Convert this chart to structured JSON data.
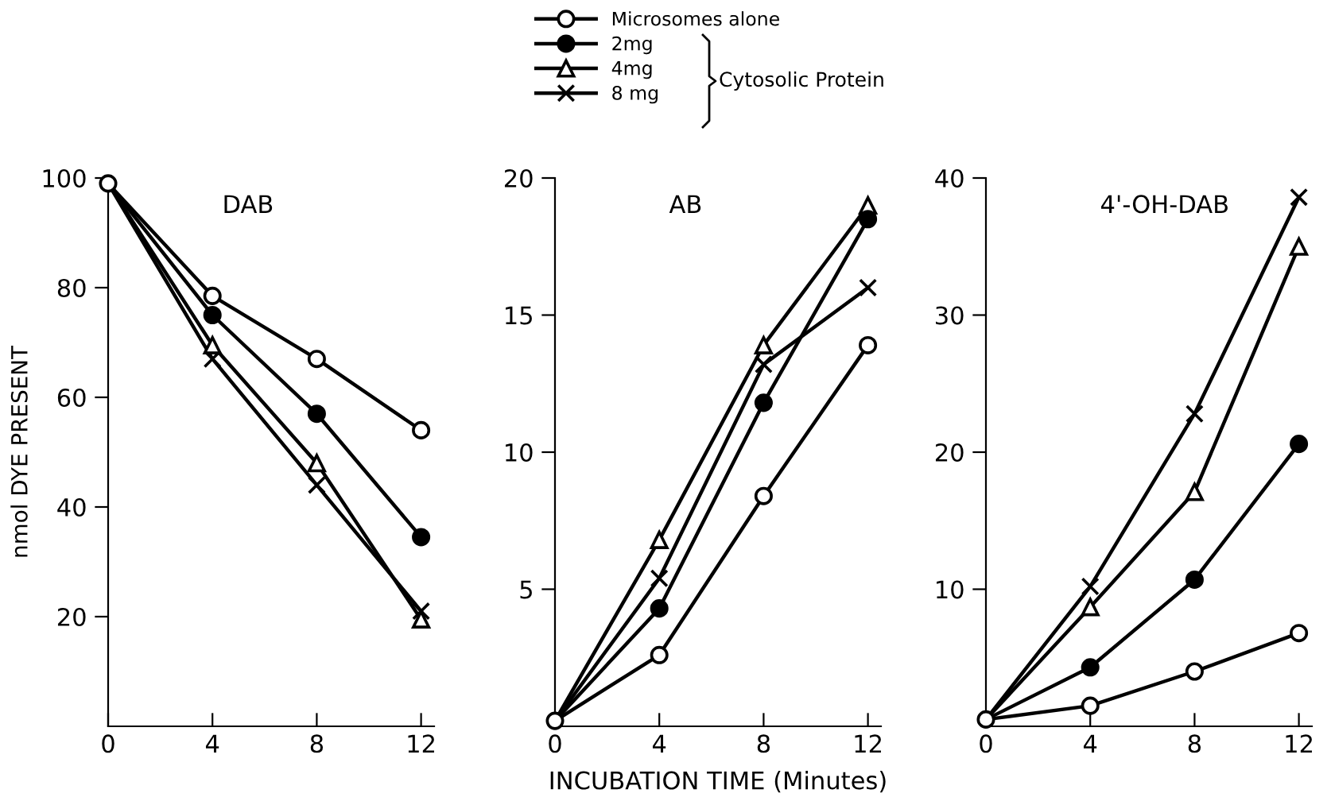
{
  "chart_data": [
    {
      "type": "line",
      "title": "DAB",
      "ylabel": "nmol DYE PRESENT",
      "x": [
        0,
        4,
        8,
        12
      ],
      "xlim": [
        0,
        12.5
      ],
      "xticks": [
        0,
        4,
        8,
        12
      ],
      "ylim": [
        0,
        100
      ],
      "yticks": [
        20,
        40,
        60,
        80,
        100
      ],
      "grid": false,
      "legend": false,
      "series": [
        {
          "color": "#000000",
          "marker": "circle",
          "values": [
            99,
            78.5,
            67,
            54
          ]
        },
        {
          "color": "#000000",
          "marker": "circle",
          "values": [
            99,
            75,
            57,
            34.5
          ]
        },
        {
          "color": "#000000",
          "marker": "triangle",
          "values": [
            99,
            69.5,
            48,
            19.5
          ]
        },
        {
          "color": "#000000",
          "marker": "cross",
          "values": [
            99,
            67,
            44,
            21
          ]
        }
      ]
    },
    {
      "type": "line",
      "title": "AB",
      "xlabel": "INCUBATION TIME (Minutes)",
      "x": [
        0,
        4,
        8,
        12
      ],
      "xlim": [
        0,
        12.5
      ],
      "xticks": [
        0,
        4,
        8,
        12
      ],
      "ylim": [
        0,
        20
      ],
      "yticks": [
        5,
        10,
        15,
        20
      ],
      "grid": false,
      "legend": "top",
      "annotations": [
        "Cytosolic Protein"
      ],
      "series": [
        {
          "name": "Microsomes alone",
          "color": "#000000",
          "marker": "circle",
          "values": [
            0.2,
            2.6,
            8.4,
            13.9
          ]
        },
        {
          "name": "2mg",
          "color": "#000000",
          "marker": "circle",
          "values": [
            0.2,
            4.3,
            11.8,
            18.5
          ]
        },
        {
          "name": "4mg",
          "color": "#000000",
          "marker": "triangle",
          "values": [
            0.2,
            6.8,
            13.9,
            19
          ]
        },
        {
          "name": "8 mg",
          "color": "#000000",
          "marker": "cross",
          "values": [
            0.2,
            5.4,
            13.2,
            16
          ]
        }
      ]
    },
    {
      "type": "line",
      "title": "4'-OH-DAB",
      "x": [
        0,
        4,
        8,
        12
      ],
      "xlim": [
        0,
        12.5
      ],
      "xticks": [
        0,
        4,
        8,
        12
      ],
      "ylim": [
        0,
        40
      ],
      "yticks": [
        10,
        20,
        30,
        40
      ],
      "grid": false,
      "legend": false,
      "series": [
        {
          "color": "#000000",
          "marker": "circle",
          "values": [
            0.5,
            1.5,
            4,
            6.8
          ]
        },
        {
          "color": "#000000",
          "marker": "circle",
          "values": [
            0.5,
            4.3,
            10.7,
            20.6
          ]
        },
        {
          "color": "#000000",
          "marker": "triangle",
          "values": [
            0.5,
            8.7,
            17.1,
            35
          ]
        },
        {
          "color": "#000000",
          "marker": "cross",
          "values": [
            0.5,
            10.2,
            22.8,
            38.6
          ]
        }
      ]
    }
  ]
}
